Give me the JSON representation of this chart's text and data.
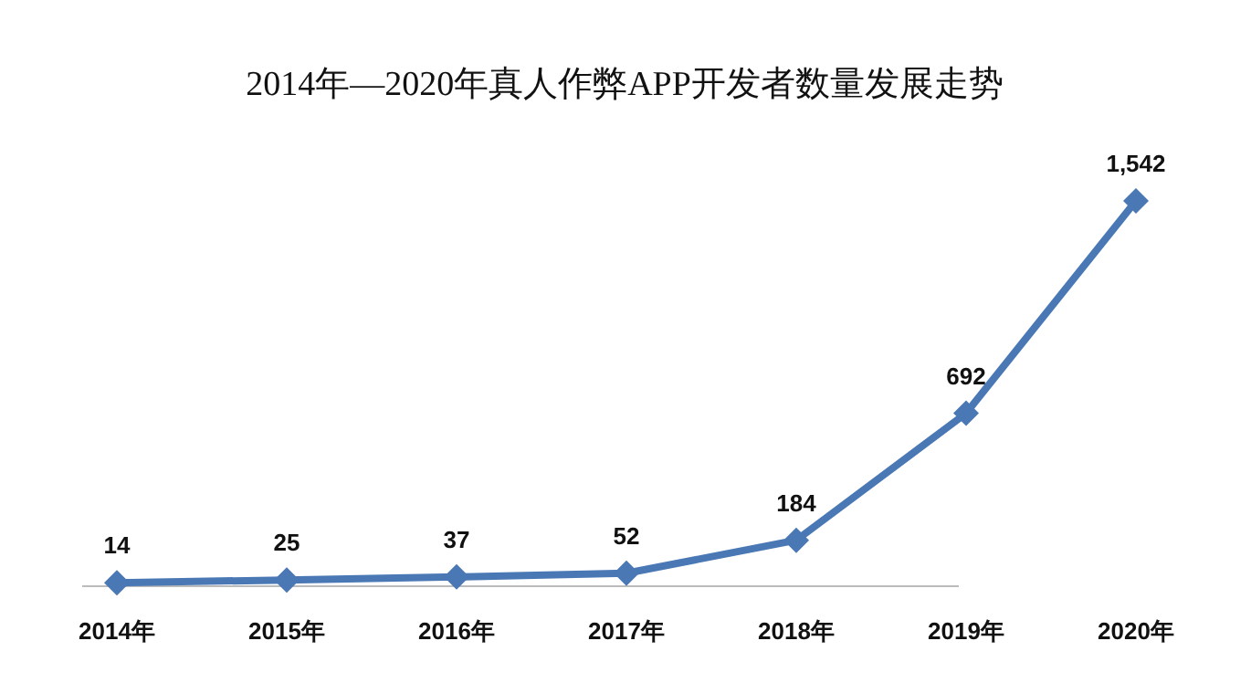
{
  "chart_data": {
    "type": "line",
    "title": "2014年—2020年真人作弊APP开发者数量发展走势",
    "categories": [
      "2014年",
      "2015年",
      "2016年",
      "2017年",
      "2018年",
      "2019年",
      "2020年"
    ],
    "series": [
      {
        "color": "#4a78b5",
        "values": [
          14,
          25,
          37,
          52,
          184,
          692,
          1542
        ],
        "value_labels": [
          "14",
          "25",
          "37",
          "52",
          "184",
          "692",
          "1,542"
        ]
      }
    ],
    "marker": "diamond",
    "line_style": "solid"
  }
}
